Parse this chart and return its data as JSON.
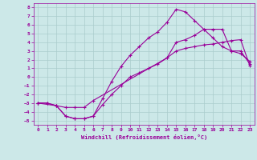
{
  "xlabel": "Windchill (Refroidissement éolien,°C)",
  "bg_color": "#cce8e8",
  "line_color": "#990099",
  "grid_color": "#aacccc",
  "xlim": [
    -0.5,
    23.5
  ],
  "ylim": [
    -5.5,
    8.5
  ],
  "xticks": [
    0,
    1,
    2,
    3,
    4,
    5,
    6,
    7,
    8,
    9,
    10,
    11,
    12,
    13,
    14,
    15,
    16,
    17,
    18,
    19,
    20,
    21,
    22,
    23
  ],
  "yticks": [
    -5,
    -4,
    -3,
    -2,
    -1,
    0,
    1,
    2,
    3,
    4,
    5,
    6,
    7,
    8
  ],
  "line1_x": [
    0,
    1,
    2,
    3,
    4,
    5,
    6,
    7,
    8,
    9,
    10,
    11,
    12,
    13,
    14,
    15,
    16,
    17,
    18,
    19,
    20,
    21,
    22,
    23
  ],
  "line1_y": [
    -3,
    -3,
    -3.3,
    -4.5,
    -4.8,
    -4.8,
    -4.5,
    -3.2,
    -2.0,
    -1.0,
    0.0,
    0.5,
    1.0,
    1.5,
    2.2,
    3.0,
    3.3,
    3.5,
    3.7,
    3.8,
    4.0,
    4.2,
    4.3,
    1.3
  ],
  "line2_x": [
    0,
    1,
    2,
    3,
    4,
    5,
    6,
    7,
    8,
    9,
    10,
    11,
    12,
    13,
    14,
    15,
    16,
    17,
    18,
    19,
    20,
    21,
    22,
    23
  ],
  "line2_y": [
    -3,
    -3,
    -3.3,
    -4.5,
    -4.8,
    -4.8,
    -4.5,
    -2.5,
    -0.5,
    1.2,
    2.5,
    3.5,
    4.5,
    5.2,
    6.3,
    7.8,
    7.5,
    6.5,
    5.5,
    4.5,
    3.5,
    3.0,
    2.7,
    1.8
  ],
  "line3_x": [
    0,
    2,
    3,
    4,
    5,
    6,
    14,
    15,
    16,
    17,
    18,
    19,
    20,
    21,
    22,
    23
  ],
  "line3_y": [
    -3,
    -3.3,
    -3.5,
    -3.5,
    -3.5,
    -2.7,
    2.2,
    4.0,
    4.3,
    4.8,
    5.5,
    5.5,
    5.5,
    3.0,
    3.0,
    1.5
  ]
}
